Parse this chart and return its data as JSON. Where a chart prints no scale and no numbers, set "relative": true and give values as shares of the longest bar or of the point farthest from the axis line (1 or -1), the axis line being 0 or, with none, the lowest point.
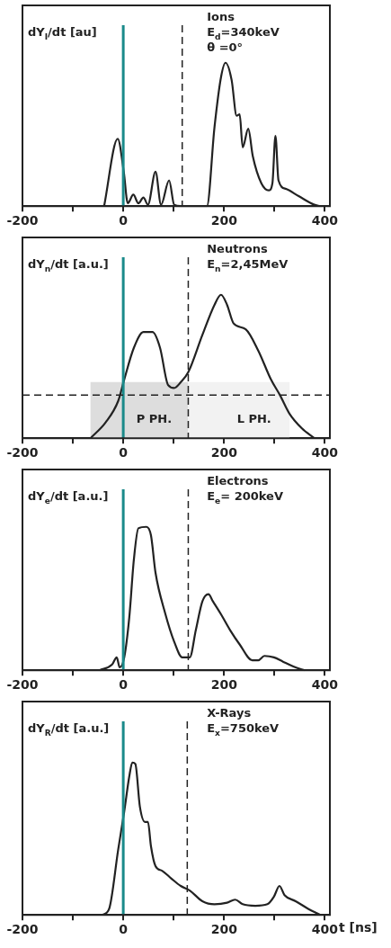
{
  "chart_data": [
    {
      "type": "line",
      "title": "Ions",
      "subtitle": "E$_{d}$=340keV",
      "ylabel": "dY$_{I}$/dt [au]",
      "annotations": [
        "θ =0°"
      ],
      "relative": true,
      "marker": "none",
      "line_style": "solid",
      "xlim": [
        -200,
        410
      ],
      "xticks": [
        -200,
        {
          "value": -100,
          "label": null
        },
        0,
        {
          "value": 100,
          "label": null
        },
        200,
        {
          "value": 300,
          "label": null
        },
        400
      ],
      "ref_lines": [
        {
          "axis": "x",
          "value": 0,
          "color": "#1a8a8a"
        },
        {
          "axis": "x",
          "value": 117,
          "color": "#222222",
          "line_style": "dashed"
        }
      ],
      "series": [
        {
          "color": "#222222",
          "x": [
            -38,
            -11,
            1,
            9,
            20,
            30,
            40,
            49,
            64,
            75,
            91,
            101,
            114,
            166,
            181,
            194,
            203,
            215,
            225,
            231,
            237,
            248,
            257,
            274,
            289,
            296,
            302,
            308,
            323,
            348,
            379,
            391
          ],
          "values": [
            0,
            0.47,
            0.24,
            0.02,
            0.08,
            0.02,
            0.06,
            0.01,
            0.24,
            0.01,
            0.18,
            0.01,
            0,
            0,
            0.55,
            0.9,
            1,
            0.88,
            0.63,
            0.64,
            0.41,
            0.54,
            0.35,
            0.16,
            0.11,
            0.16,
            0.49,
            0.18,
            0.12,
            0.07,
            0.01,
            0
          ]
        }
      ]
    },
    {
      "type": "line",
      "title": "Neutrons",
      "subtitle": "E$_{n}$=2,45MeV",
      "ylabel": "dY$_{n}$/dt [a.u.]",
      "bands": [
        {
          "axis": "x",
          "from": -65,
          "to": 129,
          "label": "P PH.",
          "color": "#dddddd"
        },
        {
          "axis": "x",
          "from": 129,
          "to": 330,
          "label": "L PH.",
          "color": "#f2f2f2"
        }
      ],
      "relative": true,
      "marker": "none",
      "line_style": "solid",
      "xlim": [
        -200,
        410
      ],
      "xticks": [
        -200,
        {
          "value": -100,
          "label": null
        },
        0,
        {
          "value": 100,
          "label": null
        },
        200,
        {
          "value": 300,
          "label": null
        },
        400
      ],
      "ref_lines": [
        {
          "axis": "x",
          "value": 0,
          "color": "#1a8a8a"
        },
        {
          "axis": "x",
          "value": 129,
          "color": "#222222",
          "line_style": "dashed"
        },
        {
          "axis": "y",
          "value": 0.3,
          "color": "#222222",
          "line_style": "dashed"
        }
      ],
      "series": [
        {
          "color": "#222222",
          "x": [
            -65,
            -35,
            -10,
            2,
            21,
            40,
            58,
            73,
            89,
            101,
            114,
            129,
            157,
            181,
            194,
            206,
            219,
            243,
            268,
            293,
            311,
            330,
            354,
            379
          ],
          "values": [
            0,
            0.11,
            0.26,
            0.41,
            0.63,
            0.74,
            0.74,
            0.63,
            0.37,
            0.35,
            0.39,
            0.46,
            0.72,
            0.93,
            1,
            0.93,
            0.8,
            0.76,
            0.61,
            0.41,
            0.3,
            0.17,
            0.07,
            0
          ]
        }
      ]
    },
    {
      "type": "line",
      "title": "Electrons",
      "subtitle": "E$_{e}$= 200keV",
      "ylabel": "dY$_{e}$/dt [a.u.]",
      "relative": true,
      "marker": "none",
      "line_style": "solid",
      "xlim": [
        -200,
        410
      ],
      "xticks": [
        -200,
        {
          "value": -100,
          "label": null
        },
        0,
        {
          "value": 100,
          "label": null
        },
        200,
        {
          "value": 300,
          "label": null
        },
        400
      ],
      "ref_lines": [
        {
          "axis": "x",
          "value": 0,
          "color": "#1a8a8a"
        },
        {
          "axis": "x",
          "value": 129,
          "color": "#222222",
          "line_style": "dashed"
        }
      ],
      "series": [
        {
          "color": "#222222",
          "x": [
            -47,
            -22,
            -13,
            -7,
            2,
            12,
            21,
            30,
            46,
            55,
            64,
            83,
            101,
            117,
            132,
            144,
            157,
            169,
            178,
            194,
            212,
            231,
            256,
            268,
            280,
            299,
            317,
            342,
            360
          ],
          "values": [
            0,
            0.04,
            0.09,
            0.02,
            0.09,
            0.37,
            0.77,
            0.99,
            1,
            0.94,
            0.68,
            0.4,
            0.2,
            0.09,
            0.09,
            0.28,
            0.48,
            0.53,
            0.48,
            0.39,
            0.28,
            0.18,
            0.07,
            0.07,
            0.1,
            0.09,
            0.06,
            0.02,
            0
          ]
        }
      ]
    },
    {
      "type": "line",
      "title": "X-Rays",
      "subtitle": "E$_{x}$=750keV",
      "ylabel": "dY$_{R}$/dt [a.u.]",
      "xlabel": "t [ns]",
      "relative": true,
      "marker": "none",
      "line_style": "solid",
      "xlim": [
        -200,
        410
      ],
      "xticks": [
        -200,
        {
          "value": -100,
          "label": null
        },
        0,
        {
          "value": 100,
          "label": null
        },
        200,
        {
          "value": 300,
          "label": null
        },
        400
      ],
      "ref_lines": [
        {
          "axis": "x",
          "value": 0,
          "color": "#1a8a8a"
        },
        {
          "axis": "x",
          "value": 127,
          "color": "#222222",
          "line_style": "dashed"
        }
      ],
      "series": [
        {
          "color": "#222222",
          "x": [
            -41,
            -28,
            -10,
            2,
            12,
            18,
            24,
            33,
            43,
            49,
            55,
            64,
            77,
            95,
            114,
            132,
            157,
            181,
            206,
            222,
            237,
            262,
            286,
            299,
            310,
            320,
            342,
            367,
            391
          ],
          "values": [
            0,
            0.04,
            0.43,
            0.68,
            0.91,
            1,
            0.99,
            0.71,
            0.61,
            0.61,
            0.45,
            0.32,
            0.29,
            0.24,
            0.19,
            0.16,
            0.09,
            0.07,
            0.08,
            0.1,
            0.07,
            0.06,
            0.07,
            0.12,
            0.19,
            0.13,
            0.09,
            0.04,
            0
          ]
        }
      ]
    }
  ]
}
